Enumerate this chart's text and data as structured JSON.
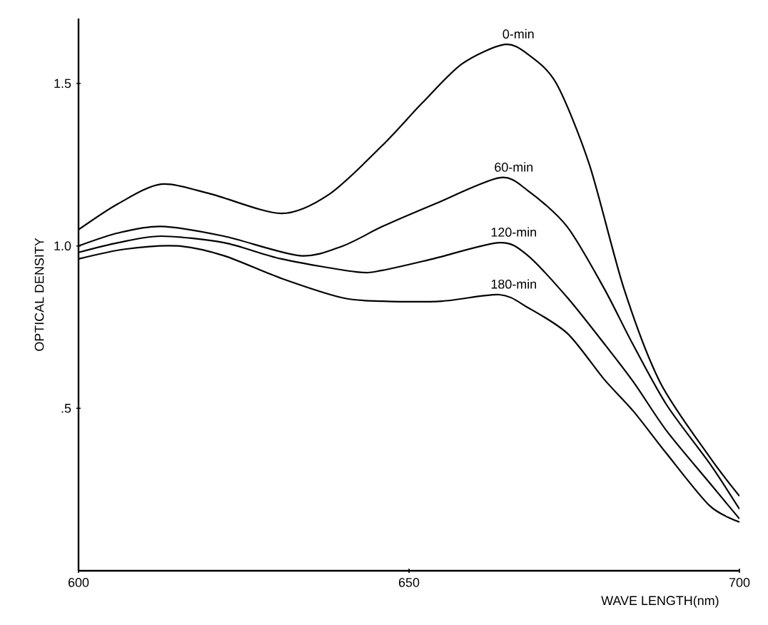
{
  "chart_data": {
    "type": "line",
    "xlabel": "WAVE LENGTH(nm)",
    "ylabel": "OPTICAL DENSITY",
    "xlim": [
      600,
      700
    ],
    "ylim": [
      0,
      1.7
    ],
    "xticks": [
      600,
      650,
      700
    ],
    "yticks": [
      {
        "value": 0.5,
        "label": ".5"
      },
      {
        "value": 1.0,
        "label": "1.0"
      },
      {
        "value": 1.5,
        "label": "1.5"
      }
    ],
    "grid": false,
    "marker": "none",
    "line_style": "solid",
    "series": [
      {
        "name": "0-min",
        "color": "#000000",
        "x": [
          600,
          606,
          612.5,
          620,
          630.7,
          638,
          646,
          652,
          658,
          664.4,
          668,
          672.3,
          677.3,
          682.5,
          688,
          695.5,
          700
        ],
        "values": [
          1.05,
          1.13,
          1.19,
          1.16,
          1.1,
          1.16,
          1.31,
          1.44,
          1.56,
          1.62,
          1.59,
          1.5,
          1.25,
          0.87,
          0.58,
          0.35,
          0.23
        ]
      },
      {
        "name": "60-min",
        "color": "#000000",
        "x": [
          600,
          606,
          612.5,
          622,
          633.5,
          640,
          646,
          654,
          663.7,
          668,
          673.9,
          679.5,
          683.8,
          689,
          695.5,
          700
        ],
        "values": [
          1.0,
          1.04,
          1.06,
          1.03,
          0.97,
          1.0,
          1.06,
          1.13,
          1.21,
          1.17,
          1.06,
          0.87,
          0.7,
          0.51,
          0.33,
          0.19
        ]
      },
      {
        "name": "120-min",
        "color": "#000000",
        "x": [
          600,
          606,
          612.5,
          622,
          630.7,
          642,
          646,
          653.6,
          663.7,
          668,
          674,
          679.5,
          684,
          689,
          695.5,
          700
        ],
        "values": [
          0.98,
          1.01,
          1.03,
          1.01,
          0.96,
          0.92,
          0.925,
          0.96,
          1.01,
          0.97,
          0.84,
          0.7,
          0.58,
          0.43,
          0.27,
          0.16
        ]
      },
      {
        "name": "180-min",
        "color": "#000000",
        "x": [
          600,
          607,
          615,
          622,
          630.7,
          640,
          646,
          655,
          663.7,
          668,
          674,
          679.5,
          684,
          689,
          695.5,
          700
        ],
        "values": [
          0.96,
          0.99,
          1.0,
          0.97,
          0.9,
          0.84,
          0.83,
          0.83,
          0.85,
          0.81,
          0.73,
          0.59,
          0.49,
          0.36,
          0.2,
          0.15
        ]
      }
    ]
  }
}
